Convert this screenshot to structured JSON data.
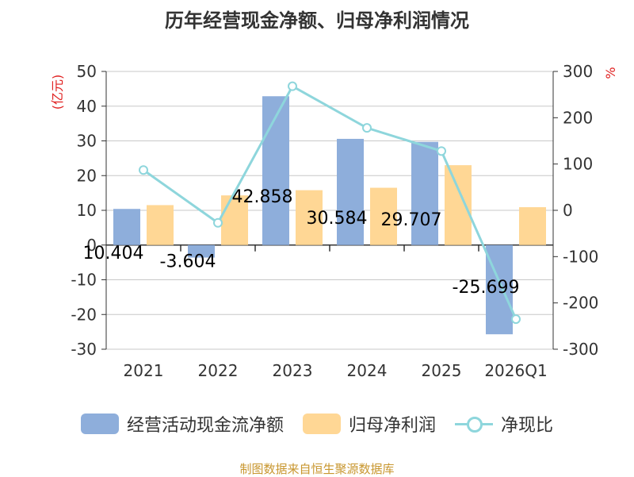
{
  "chart_data": {
    "type": "bar",
    "title": "历年经营现金净额、归母净利润情况",
    "left_axis_unit": "(亿元)",
    "right_axis_unit": "%",
    "categories": [
      "2021",
      "2022",
      "2023",
      "2024",
      "2025",
      "2026Q1"
    ],
    "left_ylim": [
      -30,
      50
    ],
    "left_ticks": [
      50,
      40,
      30,
      20,
      10,
      0,
      -10,
      -20,
      -30
    ],
    "right_ylim": [
      -300,
      300
    ],
    "right_ticks": [
      300,
      200,
      100,
      0,
      -100,
      -200,
      -300
    ],
    "grid": true,
    "legend_position": "bottom",
    "series": [
      {
        "name": "经营活动现金流净额",
        "kind": "bar",
        "axis": "left",
        "color": "#8eaedb",
        "values": [
          10.404,
          -3.604,
          42.858,
          30.584,
          29.707,
          -25.699
        ],
        "labels": [
          "10.404",
          "-3.604",
          "42.858",
          "30.584",
          "29.707",
          "-25.699"
        ]
      },
      {
        "name": "归母净利润",
        "kind": "bar",
        "axis": "left",
        "color": "#ffd795",
        "values": [
          11.5,
          14.3,
          15.8,
          16.5,
          23.0,
          10.9
        ]
      },
      {
        "name": "净现比",
        "kind": "line",
        "axis": "right",
        "color": "#8ed6dc",
        "values": [
          87,
          -27,
          268,
          178,
          128,
          -235
        ]
      }
    ]
  },
  "legend": {
    "items": [
      "经营活动现金流净额",
      "归母净利润",
      "净现比"
    ]
  },
  "source": "制图数据来自恒生聚源数据库"
}
